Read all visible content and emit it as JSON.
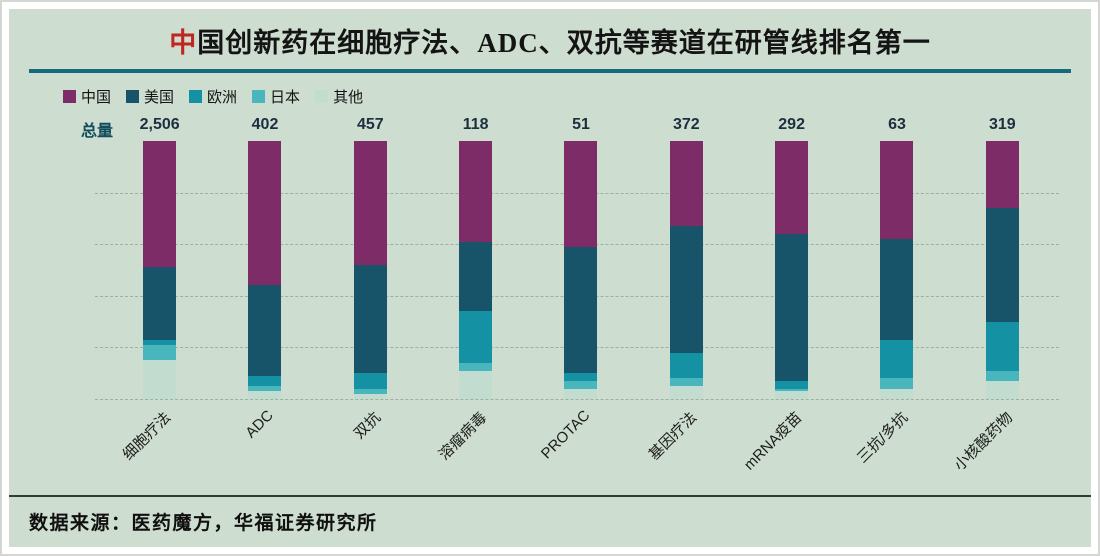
{
  "title": {
    "highlight": "中",
    "rest": "国创新药在细胞疗法、ADC、双抗等赛道在研管线排名第一"
  },
  "totals_label": "总量",
  "source": "数据来源：医药魔方，华福证券研究所",
  "colors": {
    "background": "#cdddcf",
    "title_rule": "#156a7c",
    "china": "#7d2c68",
    "usa": "#175469",
    "europe": "#1491a3",
    "japan": "#49b5bd",
    "other": "#c2dcd0"
  },
  "legend": [
    {
      "key": "china",
      "label": "中国",
      "color": "#7d2c68"
    },
    {
      "key": "usa",
      "label": "美国",
      "color": "#175469"
    },
    {
      "key": "europe",
      "label": "欧洲",
      "color": "#1491a3"
    },
    {
      "key": "japan",
      "label": "日本",
      "color": "#49b5bd"
    },
    {
      "key": "other",
      "label": "其他",
      "color": "#c2dcd0"
    }
  ],
  "chart_data": {
    "type": "bar",
    "stacked": true,
    "normalized_percent": true,
    "title": "中国创新药在细胞疗法、ADC、双抗等赛道在研管线排名第一",
    "categories": [
      "细胞疗法",
      "ADC",
      "双抗",
      "溶瘤病毒",
      "PROTAC",
      "基因疗法",
      "mRNA疫苗",
      "三抗/多抗",
      "小核酸药物"
    ],
    "totals": [
      "2,506",
      "402",
      "457",
      "118",
      "51",
      "372",
      "292",
      "63",
      "319"
    ],
    "series": [
      {
        "key": "china",
        "name": "中国",
        "color": "#7d2c68",
        "values": [
          49,
          56,
          48,
          39,
          41,
          33,
          36,
          38,
          26
        ]
      },
      {
        "key": "usa",
        "name": "美国",
        "color": "#175469",
        "values": [
          28,
          35,
          42,
          27,
          49,
          49,
          57,
          39,
          44
        ]
      },
      {
        "key": "europe",
        "name": "欧洲",
        "color": "#1491a3",
        "values": [
          2,
          4,
          6,
          20,
          3,
          10,
          3,
          15,
          19
        ]
      },
      {
        "key": "japan",
        "name": "日本",
        "color": "#49b5bd",
        "values": [
          6,
          2,
          2,
          3,
          3,
          3,
          1,
          4,
          4
        ]
      },
      {
        "key": "other",
        "name": "其他",
        "color": "#c2dcd0",
        "values": [
          15,
          3,
          2,
          11,
          4,
          5,
          3,
          4,
          7
        ]
      }
    ],
    "gridlines": "dashed-horizontal",
    "ylim": [
      0,
      100
    ],
    "legend_position": "top-left"
  }
}
